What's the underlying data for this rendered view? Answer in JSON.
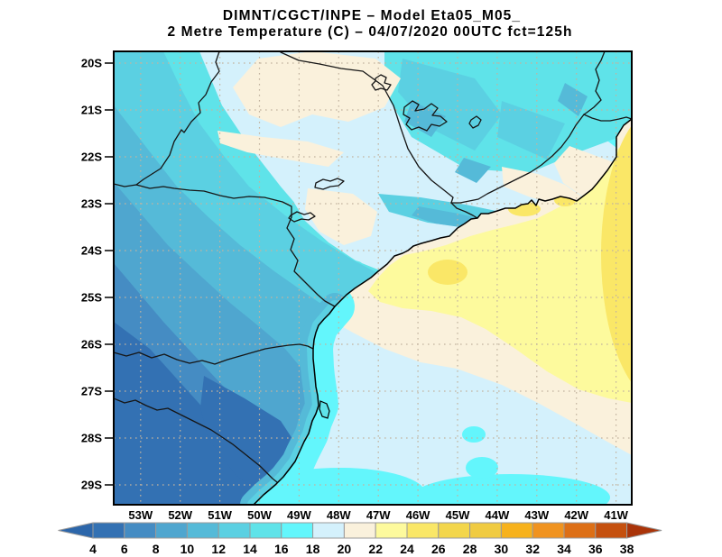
{
  "header": {
    "line1": "DIMNT/CGCT/INPE –  Model Eta05_M05_",
    "line2": "2 Metre Temperature (C) –  04/07/2020 00UTC fct=125h"
  },
  "map": {
    "lat_labels": [
      "20S",
      "21S",
      "22S",
      "23S",
      "24S",
      "25S",
      "26S",
      "27S",
      "28S",
      "29S"
    ],
    "lon_labels": [
      "53W",
      "52W",
      "51W",
      "50W",
      "49W",
      "48W",
      "47W",
      "46W",
      "45W",
      "44W",
      "43W",
      "42W",
      "41W"
    ]
  },
  "colorbar": {
    "labels": [
      "4",
      "6",
      "8",
      "10",
      "12",
      "14",
      "16",
      "18",
      "20",
      "22",
      "24",
      "26",
      "28",
      "30",
      "32",
      "34",
      "36",
      "38"
    ],
    "segment_colors": [
      "#3371b3",
      "#458cc3",
      "#4fa6cf",
      "#55bad8",
      "#5bd0e2",
      "#5fe3e9",
      "#63f6fc",
      "#d4f1fc",
      "#faf1dc",
      "#fdfa9d",
      "#fae767",
      "#f3d64b",
      "#f0cb41",
      "#f7b21c",
      "#f0931f",
      "#dd6f16",
      "#c5500e"
    ],
    "arrow_left_color": "#2c66aa",
    "arrow_right_color": "#aa3409",
    "segment_stroke": "#9a9a9a"
  },
  "palette": {
    "t4": "#3371b3",
    "t6": "#458cc3",
    "t8": "#4fa6cf",
    "t10": "#55bad8",
    "t12": "#5bd0e2",
    "t14": "#5fe3e9",
    "t16": "#63f6fc",
    "t18": "#d4f1fc",
    "t20": "#faf1dc",
    "t22": "#fdfa9d",
    "t24": "#fae767",
    "grid": "#c2b39f",
    "border": "#161616",
    "coast": "#000000",
    "frame": "#000000"
  },
  "chart_data": {
    "type": "heatmap",
    "title": "DIMNT/CGCT/INPE – Model Eta05_M05_",
    "subtitle": "2 Metre Temperature (C) – 04/07/2020 00UTC fct=125h",
    "variable": "2 Metre Temperature (C)",
    "lat_ticks": [
      "20S",
      "21S",
      "22S",
      "23S",
      "24S",
      "25S",
      "26S",
      "27S",
      "28S",
      "29S"
    ],
    "lon_ticks": [
      "53W",
      "52W",
      "51W",
      "50W",
      "49W",
      "48W",
      "47W",
      "46W",
      "45W",
      "44W",
      "43W",
      "42W",
      "41W"
    ],
    "scale_values": [
      4,
      6,
      8,
      10,
      12,
      14,
      16,
      18,
      20,
      22,
      24,
      26,
      28,
      30,
      32,
      34,
      36,
      38
    ],
    "scale_colors": [
      "#3371b3",
      "#458cc3",
      "#4fa6cf",
      "#55bad8",
      "#5bd0e2",
      "#5fe3e9",
      "#63f6fc",
      "#d4f1fc",
      "#faf1dc",
      "#fdfa9d",
      "#fae767",
      "#f3d64b",
      "#f0cb41",
      "#f7b21c",
      "#f0931f",
      "#dd6f16",
      "#c5500e"
    ],
    "legend_position": "bottom",
    "grid": "dotted"
  }
}
